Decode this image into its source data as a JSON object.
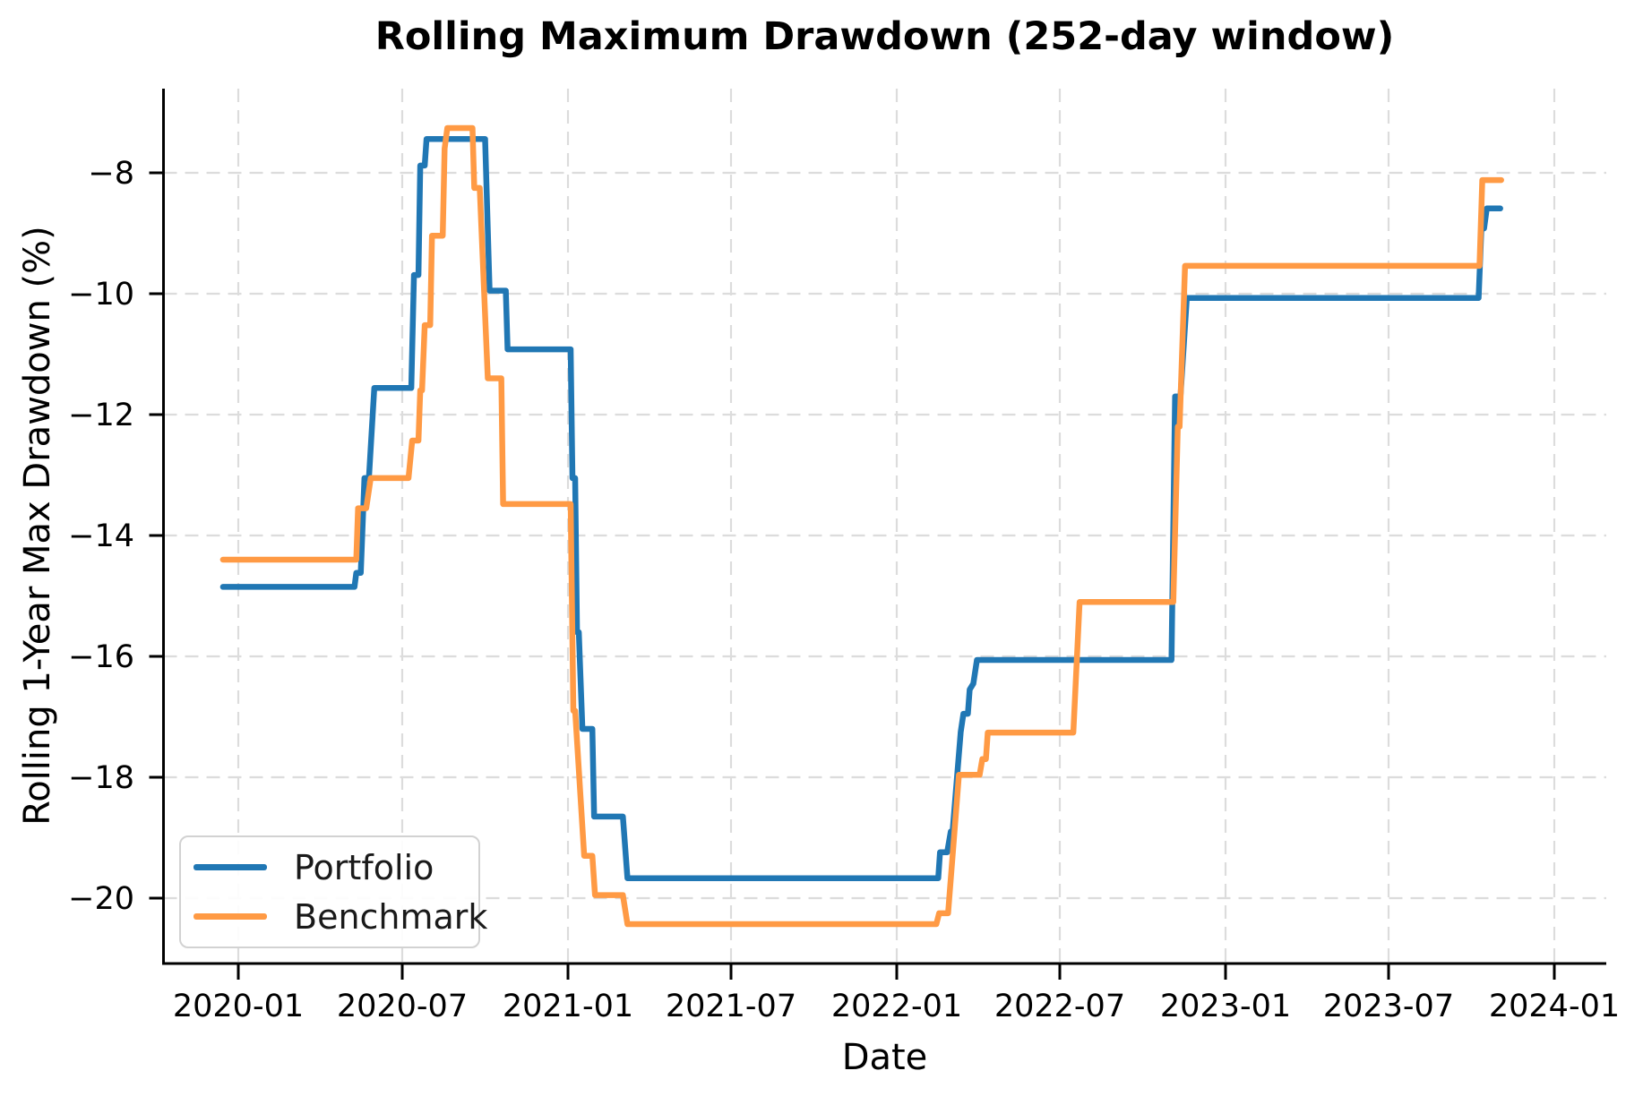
{
  "title": "Rolling Maximum Drawdown (252-day window)",
  "axes": {
    "x_label": "Date",
    "y_label": "Rolling 1-Year Max Drawdown (%)"
  },
  "legend": {
    "items": [
      {
        "label": "Portfolio",
        "color": "#2077b4"
      },
      {
        "label": "Benchmark",
        "color": "#ff9a44"
      }
    ]
  },
  "chart_data": {
    "type": "line",
    "title": "Rolling Maximum Drawdown (252-day window)",
    "xlabel": "Date",
    "ylabel": "Rolling 1-Year Max Drawdown (%)",
    "grid": true,
    "grid_style": "dashed",
    "legend_position": "lower left",
    "ylim": [
      -21.1,
      -6.6
    ],
    "xlim": [
      "2019-10-09",
      "2024-02-27"
    ],
    "x_ticks": [
      {
        "date": "2020-01-01",
        "label": "2020-01"
      },
      {
        "date": "2020-07-01",
        "label": "2020-07"
      },
      {
        "date": "2021-01-01",
        "label": "2021-01"
      },
      {
        "date": "2021-07-01",
        "label": "2021-07"
      },
      {
        "date": "2022-01-01",
        "label": "2022-01"
      },
      {
        "date": "2022-07-01",
        "label": "2022-07"
      },
      {
        "date": "2023-01-01",
        "label": "2023-01"
      },
      {
        "date": "2023-07-01",
        "label": "2023-07"
      },
      {
        "date": "2024-01-01",
        "label": "2024-01"
      }
    ],
    "y_ticks": [
      {
        "value": -8,
        "label": "−8"
      },
      {
        "value": -10,
        "label": "−10"
      },
      {
        "value": -12,
        "label": "−12"
      },
      {
        "value": -14,
        "label": "−14"
      },
      {
        "value": -16,
        "label": "−16"
      },
      {
        "value": -18,
        "label": "−18"
      },
      {
        "value": -20,
        "label": "−20"
      }
    ],
    "series": [
      {
        "name": "Portfolio",
        "color": "#2077b4",
        "points": [
          [
            "2019-12-15",
            -14.85
          ],
          [
            "2020-05-09",
            -14.85
          ],
          [
            "2020-05-11",
            -14.62
          ],
          [
            "2020-05-16",
            -14.62
          ],
          [
            "2020-05-20",
            -13.05
          ],
          [
            "2020-05-25",
            -13.05
          ],
          [
            "2020-05-31",
            -11.56
          ],
          [
            "2020-07-11",
            -11.56
          ],
          [
            "2020-07-13",
            -10.3
          ],
          [
            "2020-07-14",
            -9.69
          ],
          [
            "2020-07-19",
            -9.69
          ],
          [
            "2020-07-21",
            -7.88
          ],
          [
            "2020-07-26",
            -7.88
          ],
          [
            "2020-07-28",
            -7.44
          ],
          [
            "2020-10-01",
            -7.44
          ],
          [
            "2020-10-06",
            -9.95
          ],
          [
            "2020-10-24",
            -9.95
          ],
          [
            "2020-10-26",
            -10.92
          ],
          [
            "2021-01-04",
            -10.92
          ],
          [
            "2021-01-06",
            -13.05
          ],
          [
            "2021-01-09",
            -13.05
          ],
          [
            "2021-01-11",
            -15.6
          ],
          [
            "2021-01-13",
            -15.6
          ],
          [
            "2021-01-17",
            -17.2
          ],
          [
            "2021-01-28",
            -17.2
          ],
          [
            "2021-01-30",
            -18.65
          ],
          [
            "2021-03-03",
            -18.65
          ],
          [
            "2021-03-08",
            -19.67
          ],
          [
            "2022-02-16",
            -19.67
          ],
          [
            "2022-02-18",
            -19.24
          ],
          [
            "2022-02-26",
            -19.24
          ],
          [
            "2022-03-02",
            -18.9
          ],
          [
            "2022-03-04",
            -18.9
          ],
          [
            "2022-03-13",
            -17.25
          ],
          [
            "2022-03-16",
            -16.95
          ],
          [
            "2022-03-21",
            -16.95
          ],
          [
            "2022-03-23",
            -16.55
          ],
          [
            "2022-03-27",
            -16.45
          ],
          [
            "2022-03-31",
            -16.06
          ],
          [
            "2022-11-02",
            -16.06
          ],
          [
            "2022-11-06",
            -11.7
          ],
          [
            "2022-11-12",
            -11.7
          ],
          [
            "2022-11-19",
            -10.07
          ],
          [
            "2023-10-09",
            -10.07
          ],
          [
            "2023-10-12",
            -8.92
          ],
          [
            "2023-10-15",
            -8.92
          ],
          [
            "2023-10-18",
            -8.59
          ],
          [
            "2023-11-02",
            -8.59
          ]
        ]
      },
      {
        "name": "Benchmark",
        "color": "#ff9a44",
        "points": [
          [
            "2019-12-15",
            -14.4
          ],
          [
            "2020-05-11",
            -14.4
          ],
          [
            "2020-05-13",
            -13.55
          ],
          [
            "2020-05-22",
            -13.55
          ],
          [
            "2020-05-27",
            -13.05
          ],
          [
            "2020-07-08",
            -13.05
          ],
          [
            "2020-07-12",
            -12.43
          ],
          [
            "2020-07-19",
            -12.43
          ],
          [
            "2020-07-21",
            -11.6
          ],
          [
            "2020-07-23",
            -11.6
          ],
          [
            "2020-07-26",
            -10.52
          ],
          [
            "2020-08-01",
            -10.52
          ],
          [
            "2020-08-03",
            -9.04
          ],
          [
            "2020-08-15",
            -9.04
          ],
          [
            "2020-08-17",
            -7.6
          ],
          [
            "2020-08-20",
            -7.26
          ],
          [
            "2020-09-17",
            -7.26
          ],
          [
            "2020-09-19",
            -8.25
          ],
          [
            "2020-09-25",
            -8.25
          ],
          [
            "2020-10-04",
            -11.4
          ],
          [
            "2020-10-19",
            -11.4
          ],
          [
            "2020-10-21",
            -13.48
          ],
          [
            "2021-01-04",
            -13.48
          ],
          [
            "2021-01-07",
            -16.9
          ],
          [
            "2021-01-09",
            -16.9
          ],
          [
            "2021-01-19",
            -19.3
          ],
          [
            "2021-01-28",
            -19.3
          ],
          [
            "2021-01-31",
            -19.95
          ],
          [
            "2021-03-03",
            -19.95
          ],
          [
            "2021-03-08",
            -20.43
          ],
          [
            "2022-02-14",
            -20.43
          ],
          [
            "2022-02-17",
            -20.25
          ],
          [
            "2022-02-27",
            -20.25
          ],
          [
            "2022-03-11",
            -17.96
          ],
          [
            "2022-04-03",
            -17.96
          ],
          [
            "2022-04-06",
            -17.7
          ],
          [
            "2022-04-10",
            -17.7
          ],
          [
            "2022-04-12",
            -17.26
          ],
          [
            "2022-07-16",
            -17.26
          ],
          [
            "2022-07-23",
            -15.1
          ],
          [
            "2022-11-04",
            -15.1
          ],
          [
            "2022-11-09",
            -12.2
          ],
          [
            "2022-11-11",
            -12.2
          ],
          [
            "2022-11-17",
            -9.54
          ],
          [
            "2023-10-10",
            -9.54
          ],
          [
            "2023-10-13",
            -8.12
          ],
          [
            "2023-11-03",
            -8.12
          ]
        ]
      }
    ]
  }
}
